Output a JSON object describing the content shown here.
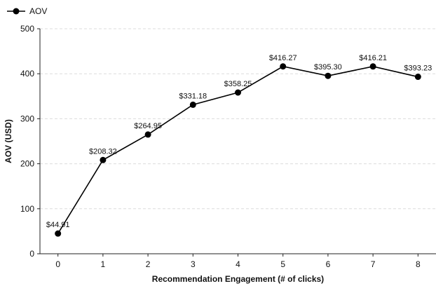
{
  "chart_data": {
    "type": "line",
    "title": "",
    "xlabel": "Recommendation Engagement (# of clicks)",
    "ylabel": "AOV (USD)",
    "x": [
      0,
      1,
      2,
      3,
      4,
      5,
      6,
      7,
      8
    ],
    "series": [
      {
        "name": "AOV",
        "values": [
          44.91,
          208.32,
          264.95,
          331.18,
          358.25,
          416.27,
          395.3,
          416.21,
          393.23
        ],
        "labels": [
          "$44.91",
          "$208.32",
          "$264.95",
          "$331.18",
          "$358.25",
          "$416.27",
          "$395.30",
          "$416.21",
          "$393.23"
        ],
        "color": "#000000"
      }
    ],
    "xlim": [
      -0.4,
      8.4
    ],
    "ylim": [
      0,
      500
    ],
    "yticks": [
      0,
      100,
      200,
      300,
      400,
      500
    ],
    "xticks": [
      0,
      1,
      2,
      3,
      4,
      5,
      6,
      7,
      8
    ],
    "grid": true,
    "legend_position": "top-left"
  },
  "legend": {
    "label": "AOV"
  }
}
